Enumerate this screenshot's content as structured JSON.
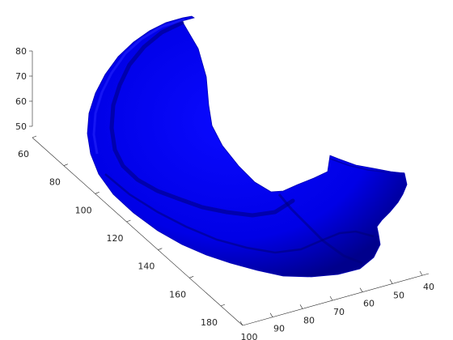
{
  "chart_data": {
    "type": "surface3d",
    "title": "",
    "xlabel": "",
    "ylabel": "",
    "zlabel": "",
    "grid": false,
    "surface_color": "#0000ff",
    "background": "#ffffff",
    "axes": {
      "x": {
        "ticks": [
          40,
          50,
          60,
          70,
          80,
          90,
          100
        ],
        "labels": [
          "40",
          "50",
          "60",
          "70",
          "80",
          "90",
          "100"
        ]
      },
      "y": {
        "ticks": [
          60,
          80,
          100,
          120,
          140,
          160,
          180
        ],
        "labels": [
          "60",
          "80",
          "100",
          "120",
          "140",
          "160",
          "180"
        ]
      },
      "z": {
        "ticks": [
          50,
          60,
          70,
          80
        ],
        "labels": [
          "50",
          "60",
          "70",
          "80"
        ]
      }
    }
  }
}
